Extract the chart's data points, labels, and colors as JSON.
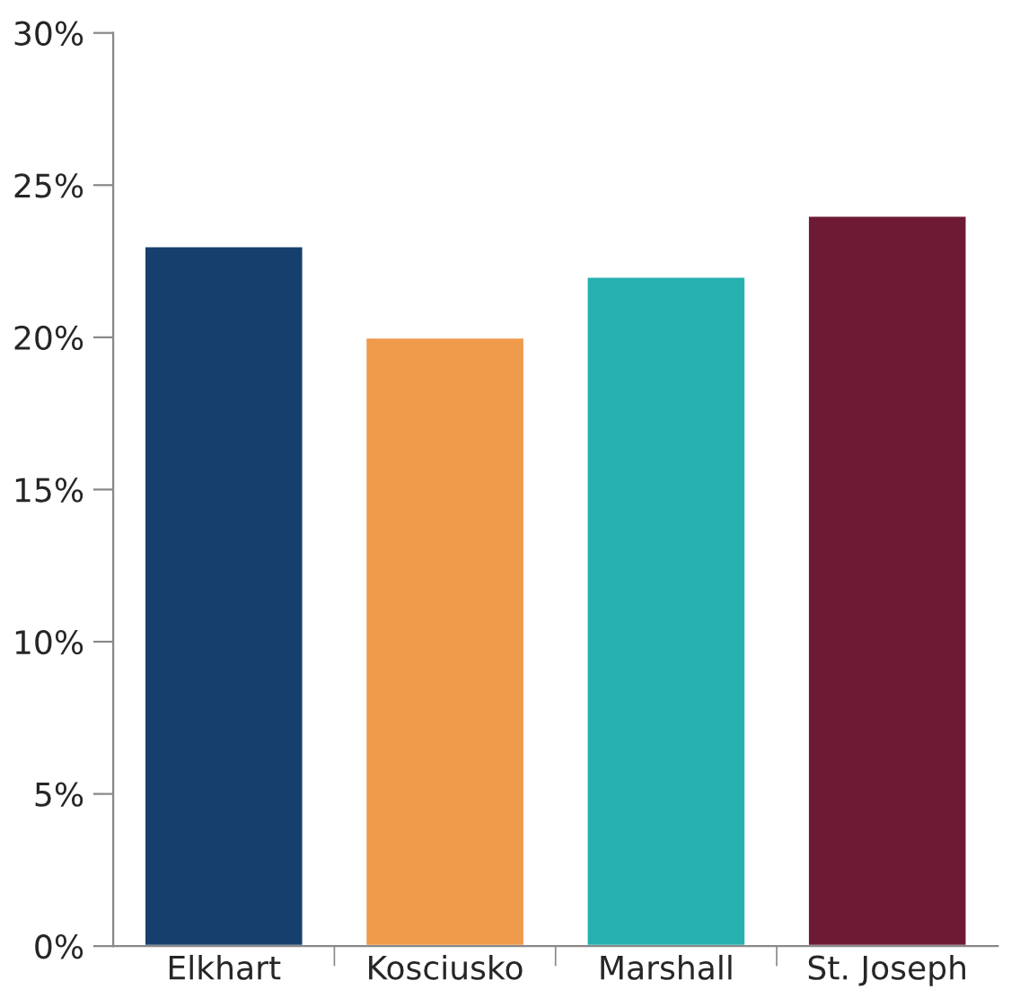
{
  "chart_data": {
    "type": "bar",
    "categories": [
      "Elkhart",
      "Kosciusko",
      "Marshall",
      "St. Joseph"
    ],
    "values": [
      23,
      20,
      22,
      24
    ],
    "colors": [
      "#173f6e",
      "#f09a4c",
      "#27b0b0",
      "#6e1a35"
    ],
    "ylim": [
      0,
      30
    ],
    "yticks": [
      {
        "value": 0,
        "label": "0%"
      },
      {
        "value": 5,
        "label": "5%"
      },
      {
        "value": 10,
        "label": "10%"
      },
      {
        "value": 15,
        "label": "15%"
      },
      {
        "value": 20,
        "label": "20%"
      },
      {
        "value": 25,
        "label": "25%"
      },
      {
        "value": 30,
        "label": "30%"
      }
    ],
    "grid": false
  }
}
